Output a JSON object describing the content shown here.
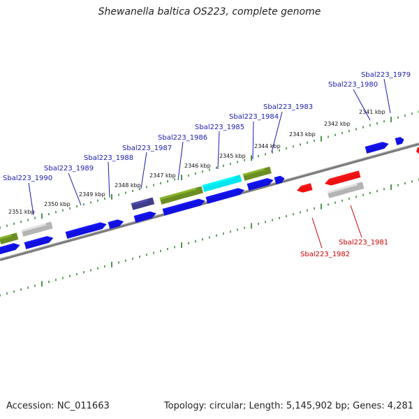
{
  "title": "Shewanella baltica OS223, complete genome",
  "footer": {
    "accession": "Accession: NC_011663",
    "summary": "Topology: circular; Length: 5,145,902 bp; Genes: 4,281"
  },
  "colors": {
    "forward_label": "#1a1ab0",
    "reverse_label": "#cc0000",
    "cds_blue": "#1010e0",
    "highlight_red": "#ee1111",
    "olive": "#6b8e23",
    "cyan": "#00e5ee",
    "slate": "#3f3d8a",
    "grey": "#b4b4b4",
    "axis": "#7a7a7a",
    "tick": "#1f7a1f"
  },
  "scale_ticks": [
    "2351 kbp",
    "2350 kbp",
    "2349 kbp",
    "2348 kbp",
    "2347 kbp",
    "2346 kbp",
    "2345 kbp",
    "2344 kbp",
    "2343 kbp",
    "2342 kbp",
    "2341 kbp"
  ],
  "forward_labels": [
    "Sbal223_1990",
    "Sbal223_1989",
    "Sbal223_1988",
    "Sbal223_1987",
    "Sbal223_1986",
    "Sbal223_1985",
    "Sbal223_1984",
    "Sbal223_1983",
    "Sbal223_1980",
    "Sbal223_1979"
  ],
  "reverse_labels": [
    "Sbal223_1982",
    "Sbal223_1981"
  ]
}
